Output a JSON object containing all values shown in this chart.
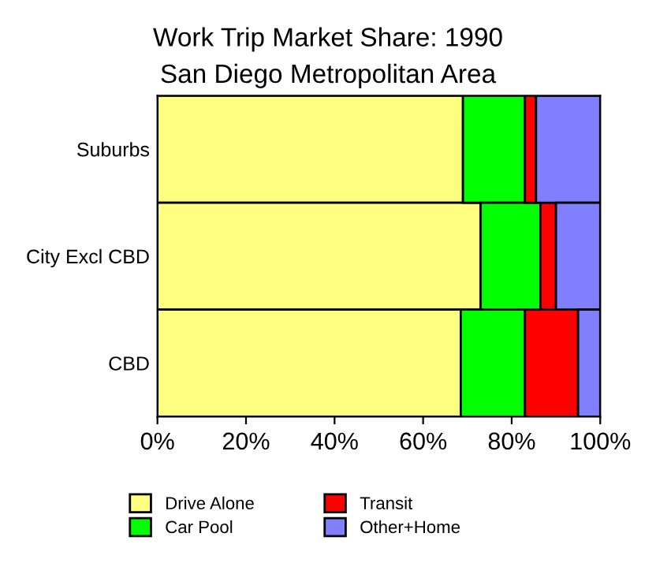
{
  "chart_data": {
    "type": "bar",
    "orientation": "horizontal",
    "stacked": true,
    "title": "Work Trip Market Share: 1990",
    "subtitle": "San Diego Metropolitan Area",
    "categories": [
      "Suburbs",
      "City Excl CBD",
      "CBD"
    ],
    "series": [
      {
        "name": "Drive Alone",
        "color": "#ffff80",
        "values": [
          69,
          73,
          68.5
        ]
      },
      {
        "name": "Car Pool",
        "color": "#00ff00",
        "values": [
          14,
          13.5,
          14.5
        ]
      },
      {
        "name": "Transit",
        "color": "#ff0000",
        "values": [
          2.5,
          3.5,
          12
        ]
      },
      {
        "name": "Other+Home",
        "color": "#8080ff",
        "values": [
          14.5,
          10,
          5
        ]
      }
    ],
    "xlim": [
      0,
      100
    ],
    "xticks": [
      {
        "value": 0,
        "label": "0%"
      },
      {
        "value": 20,
        "label": "20%"
      },
      {
        "value": 40,
        "label": "40%"
      },
      {
        "value": 60,
        "label": "60%"
      },
      {
        "value": 80,
        "label": "80%"
      },
      {
        "value": 100,
        "label": "100%"
      }
    ],
    "grid": false,
    "legend": "bottom"
  }
}
